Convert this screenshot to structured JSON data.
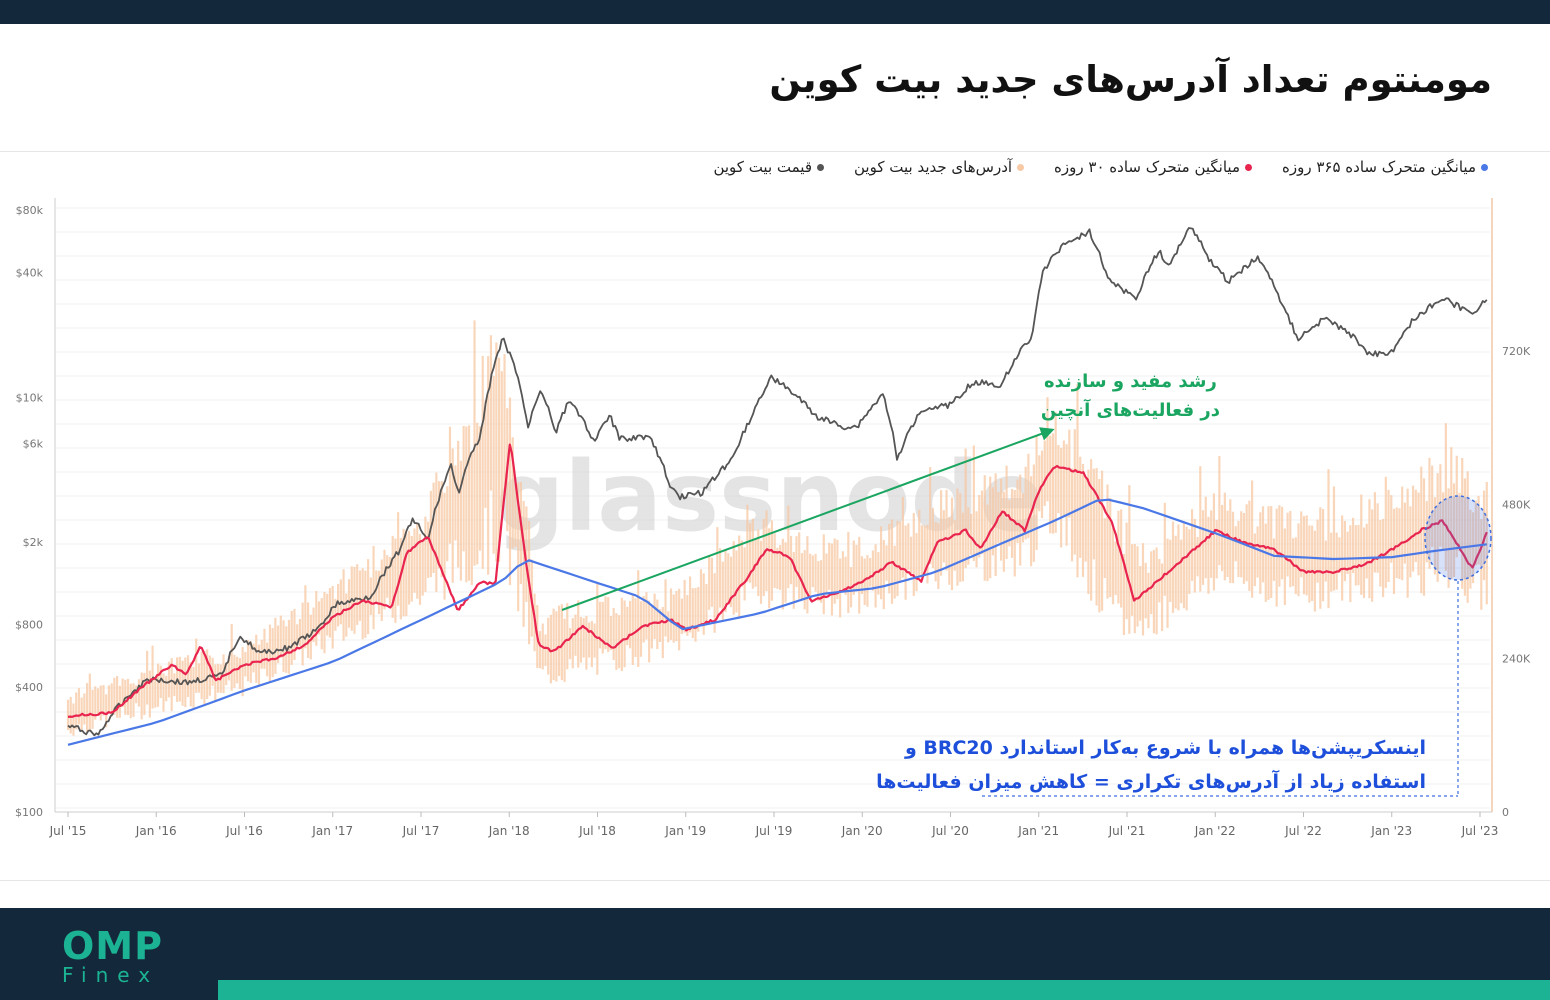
{
  "title": "مومنتوم تعداد آدرس‌های جدید بیت کوین",
  "watermark": "glassnode",
  "legend": [
    {
      "label": "قیمت بیت کوین",
      "color": "#555555"
    },
    {
      "label": "آدرس‌های جدید بیت کوین",
      "color": "#f7c9a4"
    },
    {
      "label": "میانگین متحرک ساده ۳۰ روزه",
      "color": "#e8244f"
    },
    {
      "label": "میانگین متحرک ساده ۳۶۵ روزه",
      "color": "#4a78e6"
    }
  ],
  "annotations": {
    "green_line1": "رشد مفید و سازنده",
    "green_line2": "در فعالیت‌های آنچین",
    "blue_line1": "اینسکریپشن‌ها همراه با شروع به‌کار استاندارد BRC20 و",
    "blue_line2": "استفاده زیاد از آدرس‌های تکراری = کاهش میزان فعالیت‌ها"
  },
  "brand": {
    "logo_top": "OMP",
    "logo_bottom": "Finex"
  },
  "chart_data": {
    "type": "line",
    "x": [
      "Jul '15",
      "Jan '16",
      "Jul '16",
      "Jan '17",
      "Jul '17",
      "Jan '18",
      "Jul '18",
      "Jan '19",
      "Jul '19",
      "Jan '20",
      "Jul '20",
      "Jan '21",
      "Jul '21",
      "Jan '22",
      "Jul '22",
      "Jan '23",
      "Jul '23"
    ],
    "x_range": [
      "2015-07",
      "2023-07"
    ],
    "left_axis": {
      "scale": "log",
      "ticks": [
        "$100",
        "$400",
        "$800",
        "$2k",
        "$6k",
        "$10k",
        "$40k",
        "$80k"
      ],
      "tick_values": [
        100,
        400,
        800,
        2000,
        6000,
        10000,
        40000,
        80000
      ]
    },
    "right_axis": {
      "scale": "linear",
      "ticks": [
        "0",
        "240K",
        "480K",
        "720K"
      ],
      "tick_values": [
        0,
        240000,
        480000,
        720000
      ],
      "range": [
        0,
        940000
      ]
    },
    "series": [
      {
        "name": "قیمت بیت کوین",
        "axis": "left",
        "color": "#555555",
        "points": [
          [
            "2015-07-01",
            260
          ],
          [
            "2015-09-01",
            235
          ],
          [
            "2015-11-01",
            360
          ],
          [
            "2015-12-15",
            440
          ],
          [
            "2016-03-01",
            420
          ],
          [
            "2016-05-15",
            455
          ],
          [
            "2016-06-20",
            710
          ],
          [
            "2016-08-01",
            580
          ],
          [
            "2016-10-01",
            620
          ],
          [
            "2016-12-01",
            760
          ],
          [
            "2017-01-05",
            1000
          ],
          [
            "2017-02-15",
            1050
          ],
          [
            "2017-03-20",
            1100
          ],
          [
            "2017-05-15",
            1800
          ],
          [
            "2017-06-15",
            2600
          ],
          [
            "2017-07-15",
            2000
          ],
          [
            "2017-09-01",
            4700
          ],
          [
            "2017-09-15",
            3400
          ],
          [
            "2017-11-01",
            6500
          ],
          [
            "2017-12-17",
            19000
          ],
          [
            "2018-01-15",
            13000
          ],
          [
            "2018-02-06",
            7000
          ],
          [
            "2018-03-05",
            11000
          ],
          [
            "2018-04-05",
            6800
          ],
          [
            "2018-05-05",
            9700
          ],
          [
            "2018-06-25",
            6000
          ],
          [
            "2018-07-25",
            8200
          ],
          [
            "2018-08-15",
            6300
          ],
          [
            "2018-10-15",
            6500
          ],
          [
            "2018-11-25",
            3900
          ],
          [
            "2018-12-15",
            3300
          ],
          [
            "2019-02-01",
            3450
          ],
          [
            "2019-04-05",
            5000
          ],
          [
            "2019-05-15",
            8000
          ],
          [
            "2019-06-26",
            12500
          ],
          [
            "2019-08-15",
            10200
          ],
          [
            "2019-09-25",
            8100
          ],
          [
            "2019-11-20",
            7200
          ],
          [
            "2019-12-20",
            7200
          ],
          [
            "2020-02-12",
            10300
          ],
          [
            "2020-03-12",
            4900
          ],
          [
            "2020-05-01",
            8800
          ],
          [
            "2020-07-01",
            9200
          ],
          [
            "2020-08-15",
            11800
          ],
          [
            "2020-10-15",
            11500
          ],
          [
            "2020-11-15",
            16000
          ],
          [
            "2020-12-15",
            19000
          ],
          [
            "2021-01-08",
            40000
          ],
          [
            "2021-02-20",
            55000
          ],
          [
            "2021-04-14",
            63000
          ],
          [
            "2021-05-20",
            38000
          ],
          [
            "2021-06-20",
            33000
          ],
          [
            "2021-07-20",
            30000
          ],
          [
            "2021-09-05",
            51000
          ],
          [
            "2021-09-25",
            42000
          ],
          [
            "2021-11-10",
            67000
          ],
          [
            "2021-12-15",
            47000
          ],
          [
            "2022-01-25",
            36000
          ],
          [
            "2022-03-28",
            47000
          ],
          [
            "2022-05-15",
            29000
          ],
          [
            "2022-06-18",
            19000
          ],
          [
            "2022-08-15",
            24000
          ],
          [
            "2022-10-15",
            19200
          ],
          [
            "2022-11-15",
            16000
          ],
          [
            "2023-01-01",
            16600
          ],
          [
            "2023-02-15",
            24000
          ],
          [
            "2023-04-15",
            30000
          ],
          [
            "2023-06-15",
            25000
          ],
          [
            "2023-07-15",
            30300
          ]
        ]
      },
      {
        "name": "میانگین متحرک ساده ۳۰ روزه",
        "axis": "right",
        "color": "#e8244f",
        "points": [
          [
            "2015-07-01",
            150000
          ],
          [
            "2015-10-01",
            155000
          ],
          [
            "2015-12-01",
            195000
          ],
          [
            "2016-02-01",
            230000
          ],
          [
            "2016-03-01",
            215000
          ],
          [
            "2016-04-01",
            260000
          ],
          [
            "2016-05-01",
            205000
          ],
          [
            "2016-07-01",
            230000
          ],
          [
            "2016-09-01",
            240000
          ],
          [
            "2016-11-01",
            260000
          ],
          [
            "2017-01-01",
            305000
          ],
          [
            "2017-03-01",
            330000
          ],
          [
            "2017-05-01",
            320000
          ],
          [
            "2017-06-01",
            405000
          ],
          [
            "2017-07-15",
            430000
          ],
          [
            "2017-09-15",
            315000
          ],
          [
            "2017-11-01",
            360000
          ],
          [
            "2017-12-01",
            355000
          ],
          [
            "2018-01-01",
            580000
          ],
          [
            "2018-02-01",
            400000
          ],
          [
            "2018-03-01",
            260000
          ],
          [
            "2018-04-01",
            250000
          ],
          [
            "2018-06-01",
            290000
          ],
          [
            "2018-08-01",
            255000
          ],
          [
            "2018-10-01",
            290000
          ],
          [
            "2018-12-01",
            300000
          ],
          [
            "2019-01-01",
            285000
          ],
          [
            "2019-03-01",
            300000
          ],
          [
            "2019-05-01",
            360000
          ],
          [
            "2019-06-15",
            410000
          ],
          [
            "2019-08-01",
            400000
          ],
          [
            "2019-09-15",
            330000
          ],
          [
            "2019-11-01",
            340000
          ],
          [
            "2020-01-01",
            360000
          ],
          [
            "2020-03-01",
            390000
          ],
          [
            "2020-05-01",
            360000
          ],
          [
            "2020-06-01",
            420000
          ],
          [
            "2020-08-01",
            440000
          ],
          [
            "2020-09-01",
            410000
          ],
          [
            "2020-10-15",
            470000
          ],
          [
            "2020-12-01",
            440000
          ],
          [
            "2021-01-01",
            505000
          ],
          [
            "2021-02-01",
            540000
          ],
          [
            "2021-04-01",
            530000
          ],
          [
            "2021-06-01",
            450000
          ],
          [
            "2021-07-15",
            330000
          ],
          [
            "2021-09-01",
            360000
          ],
          [
            "2021-11-01",
            400000
          ],
          [
            "2022-01-01",
            440000
          ],
          [
            "2022-03-01",
            420000
          ],
          [
            "2022-05-01",
            410000
          ],
          [
            "2022-07-01",
            375000
          ],
          [
            "2022-09-01",
            375000
          ],
          [
            "2022-11-01",
            385000
          ],
          [
            "2023-01-01",
            410000
          ],
          [
            "2023-03-01",
            440000
          ],
          [
            "2023-04-15",
            455000
          ],
          [
            "2023-06-15",
            380000
          ],
          [
            "2023-07-15",
            435000
          ]
        ]
      },
      {
        "name": "میانگین متحرک ساده ۳۶۵ روزه",
        "axis": "right",
        "color": "#4a78e6",
        "points": [
          [
            "2015-07-01",
            105000
          ],
          [
            "2016-01-01",
            140000
          ],
          [
            "2016-07-01",
            190000
          ],
          [
            "2017-01-01",
            235000
          ],
          [
            "2017-07-01",
            300000
          ],
          [
            "2017-12-15",
            360000
          ],
          [
            "2018-02-01",
            395000
          ],
          [
            "2018-06-01",
            365000
          ],
          [
            "2018-10-01",
            335000
          ],
          [
            "2018-12-20",
            285000
          ],
          [
            "2019-06-01",
            310000
          ],
          [
            "2019-10-01",
            340000
          ],
          [
            "2020-02-01",
            350000
          ],
          [
            "2020-06-01",
            375000
          ],
          [
            "2020-10-01",
            415000
          ],
          [
            "2021-02-01",
            455000
          ],
          [
            "2021-05-10",
            490000
          ],
          [
            "2021-08-01",
            475000
          ],
          [
            "2022-01-01",
            435000
          ],
          [
            "2022-05-01",
            400000
          ],
          [
            "2022-09-01",
            395000
          ],
          [
            "2023-01-01",
            398000
          ],
          [
            "2023-04-01",
            408000
          ],
          [
            "2023-07-15",
            418000
          ]
        ]
      },
      {
        "name": "آدرس‌های جدید بیت کوین",
        "axis": "right",
        "color": "#f7c9a4",
        "band_points": [
          [
            "2015-07-01",
            115000,
            190000
          ],
          [
            "2016-01-01",
            150000,
            235000
          ],
          [
            "2016-07-01",
            180000,
            270000
          ],
          [
            "2017-01-01",
            250000,
            370000
          ],
          [
            "2017-07-01",
            310000,
            470000
          ],
          [
            "2017-12-15",
            380000,
            790000
          ],
          [
            "2018-03-01",
            190000,
            320000
          ],
          [
            "2018-07-01",
            210000,
            340000
          ],
          [
            "2018-12-01",
            240000,
            350000
          ],
          [
            "2019-06-01",
            320000,
            470000
          ],
          [
            "2019-12-01",
            300000,
            420000
          ],
          [
            "2020-06-01",
            340000,
            500000
          ],
          [
            "2020-12-01",
            370000,
            560000
          ],
          [
            "2021-02-01",
            430000,
            650000
          ],
          [
            "2021-06-01",
            260000,
            500000
          ],
          [
            "2021-08-01",
            260000,
            420000
          ],
          [
            "2022-01-01",
            340000,
            510000
          ],
          [
            "2022-07-01",
            310000,
            470000
          ],
          [
            "2023-01-01",
            330000,
            510000
          ],
          [
            "2023-05-01",
            340000,
            580000
          ],
          [
            "2023-07-15",
            300000,
            520000
          ]
        ]
      }
    ]
  }
}
